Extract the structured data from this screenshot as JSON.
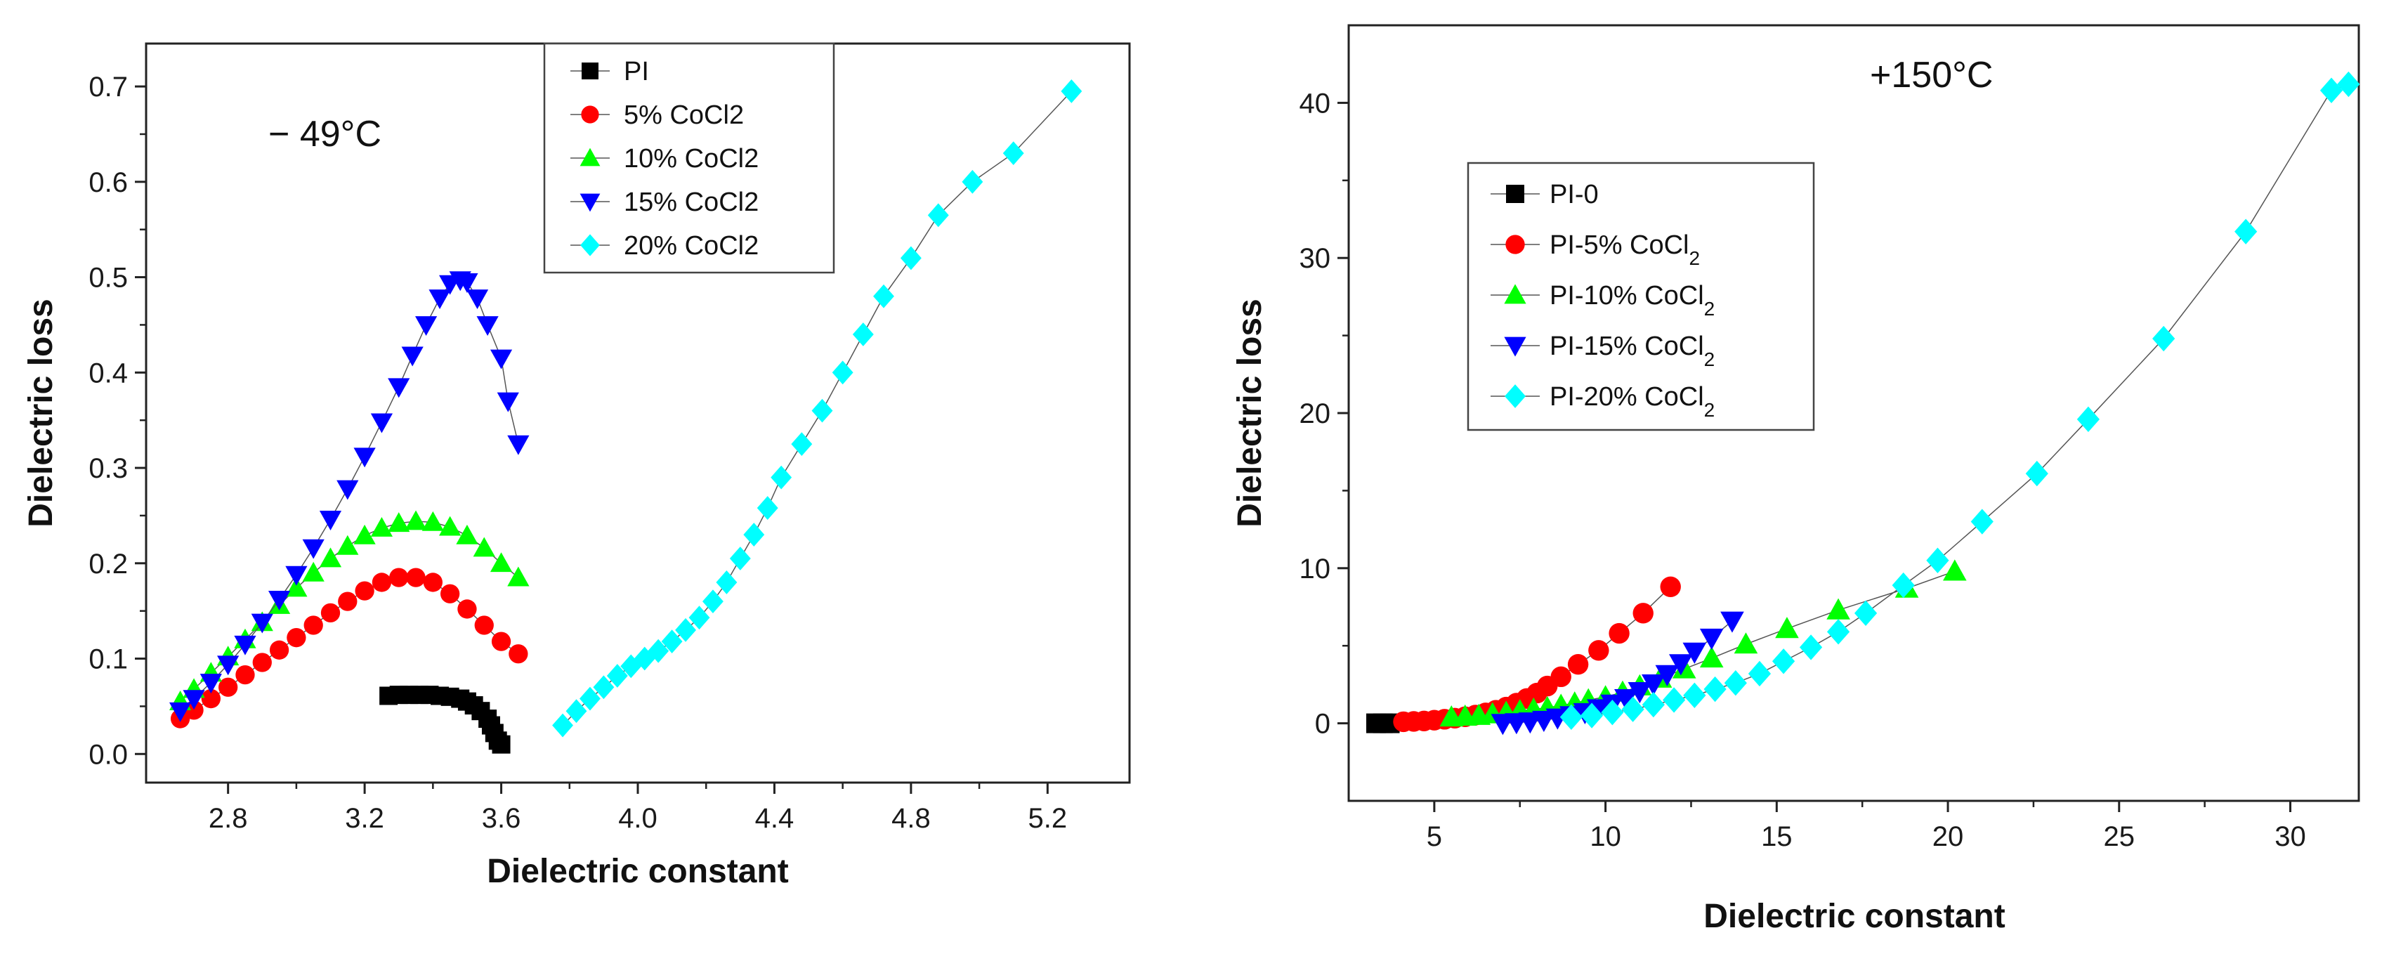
{
  "chart_data": [
    {
      "type": "scatter",
      "title": "",
      "temperature_label": "− 49°C",
      "xlabel": "Dielectric constant",
      "ylabel": "Dielectric loss",
      "xlim": [
        2.56,
        5.44
      ],
      "ylim": [
        -0.03,
        0.745
      ],
      "xticks": [
        "2.8",
        "3.2",
        "3.6",
        "4.0",
        "4.4",
        "4.8",
        "5.2"
      ],
      "yticks": [
        "0.0",
        "0.1",
        "0.2",
        "0.3",
        "0.4",
        "0.5",
        "0.6",
        "0.7"
      ],
      "legend_position": "top-center",
      "series": [
        {
          "name": "PI",
          "color": "#000000",
          "marker": "square",
          "x": [
            3.27,
            3.3,
            3.33,
            3.36,
            3.39,
            3.42,
            3.45,
            3.48,
            3.5,
            3.52,
            3.54,
            3.56,
            3.57,
            3.58,
            3.59,
            3.6
          ],
          "y": [
            0.061,
            0.062,
            0.062,
            0.062,
            0.062,
            0.061,
            0.06,
            0.058,
            0.055,
            0.051,
            0.045,
            0.037,
            0.03,
            0.022,
            0.014,
            0.01
          ]
        },
        {
          "name": "5% CoCl2",
          "color": "#ff0000",
          "marker": "circle",
          "x": [
            2.66,
            2.7,
            2.75,
            2.8,
            2.85,
            2.9,
            2.95,
            3.0,
            3.05,
            3.1,
            3.15,
            3.2,
            3.25,
            3.3,
            3.35,
            3.4,
            3.45,
            3.5,
            3.55,
            3.6,
            3.65
          ],
          "y": [
            0.037,
            0.046,
            0.058,
            0.07,
            0.083,
            0.096,
            0.109,
            0.122,
            0.135,
            0.148,
            0.16,
            0.171,
            0.18,
            0.185,
            0.185,
            0.18,
            0.168,
            0.152,
            0.135,
            0.118,
            0.105
          ]
        },
        {
          "name": "10% CoCl2",
          "color": "#00ff00",
          "marker": "triangle",
          "x": [
            2.66,
            2.7,
            2.75,
            2.8,
            2.85,
            2.9,
            2.95,
            3.0,
            3.05,
            3.1,
            3.15,
            3.2,
            3.25,
            3.3,
            3.35,
            3.4,
            3.45,
            3.5,
            3.55,
            3.6,
            3.65
          ],
          "y": [
            0.055,
            0.068,
            0.085,
            0.102,
            0.12,
            0.138,
            0.156,
            0.174,
            0.19,
            0.205,
            0.218,
            0.229,
            0.237,
            0.242,
            0.244,
            0.243,
            0.238,
            0.229,
            0.216,
            0.2,
            0.185
          ]
        },
        {
          "name": "15% CoCl2",
          "color": "#0000ff",
          "marker": "triangle-down",
          "x": [
            2.66,
            2.7,
            2.75,
            2.8,
            2.85,
            2.9,
            2.95,
            3.0,
            3.05,
            3.1,
            3.15,
            3.2,
            3.25,
            3.3,
            3.34,
            3.38,
            3.42,
            3.45,
            3.48,
            3.5,
            3.53,
            3.56,
            3.6,
            3.62,
            3.65
          ],
          "y": [
            0.045,
            0.058,
            0.075,
            0.094,
            0.115,
            0.138,
            0.162,
            0.188,
            0.216,
            0.246,
            0.278,
            0.312,
            0.348,
            0.385,
            0.418,
            0.45,
            0.478,
            0.493,
            0.497,
            0.495,
            0.478,
            0.45,
            0.415,
            0.37,
            0.325
          ]
        },
        {
          "name": "20% CoCl2",
          "color": "#00ffff",
          "marker": "diamond",
          "x": [
            3.78,
            3.82,
            3.86,
            3.9,
            3.94,
            3.98,
            4.02,
            4.06,
            4.1,
            4.14,
            4.18,
            4.22,
            4.26,
            4.3,
            4.34,
            4.38,
            4.42,
            4.48,
            4.54,
            4.6,
            4.66,
            4.72,
            4.8,
            4.88,
            4.98,
            5.1,
            5.27
          ],
          "y": [
            0.03,
            0.045,
            0.058,
            0.07,
            0.082,
            0.092,
            0.1,
            0.108,
            0.118,
            0.13,
            0.143,
            0.16,
            0.18,
            0.205,
            0.23,
            0.258,
            0.29,
            0.325,
            0.36,
            0.4,
            0.44,
            0.48,
            0.52,
            0.565,
            0.6,
            0.63,
            0.695
          ]
        }
      ]
    },
    {
      "type": "scatter",
      "title": "",
      "temperature_label": "+150°C",
      "xlabel": "Dielectric constant",
      "ylabel": "Dielectric loss",
      "xlim": [
        2.5,
        32.0
      ],
      "ylim": [
        -5,
        45
      ],
      "xticks": [
        "5",
        "10",
        "15",
        "20",
        "25",
        "30"
      ],
      "yticks": [
        "0",
        "10",
        "20",
        "30",
        "40"
      ],
      "legend_position": "top-left",
      "series": [
        {
          "name": "PI-0",
          "color": "#000000",
          "marker": "square",
          "x": [
            3.3,
            3.5,
            3.7
          ],
          "y": [
            0.0,
            0.0,
            0.0
          ]
        },
        {
          "name": "PI-5% CoCl2",
          "color": "#ff0000",
          "marker": "circle",
          "x": [
            4.1,
            4.4,
            4.7,
            5.0,
            5.3,
            5.6,
            5.9,
            6.2,
            6.5,
            6.8,
            7.1,
            7.4,
            7.7,
            8.0,
            8.3,
            8.7,
            9.2,
            9.8,
            10.4,
            11.1,
            11.9
          ],
          "y": [
            0.1,
            0.12,
            0.15,
            0.2,
            0.26,
            0.33,
            0.42,
            0.53,
            0.67,
            0.84,
            1.04,
            1.3,
            1.6,
            1.95,
            2.4,
            3.0,
            3.8,
            4.7,
            5.8,
            7.1,
            8.8
          ]
        },
        {
          "name": "PI-10% CoCl2",
          "color": "#00ff00",
          "marker": "triangle",
          "x": [
            5.5,
            5.9,
            6.3,
            6.7,
            7.1,
            7.5,
            7.9,
            8.3,
            8.7,
            9.1,
            9.5,
            10.0,
            10.5,
            11.0,
            11.6,
            12.3,
            13.1,
            14.1,
            15.3,
            16.8,
            18.8,
            20.2
          ],
          "y": [
            0.4,
            0.45,
            0.5,
            0.6,
            0.7,
            0.8,
            0.9,
            1.0,
            1.15,
            1.3,
            1.5,
            1.7,
            2.0,
            2.4,
            2.9,
            3.5,
            4.2,
            5.1,
            6.1,
            7.3,
            8.7,
            9.8
          ]
        },
        {
          "name": "PI-15% CoCl2",
          "color": "#0000ff",
          "marker": "triangle-down",
          "x": [
            7.0,
            7.4,
            7.8,
            8.2,
            8.6,
            9.0,
            9.4,
            9.8,
            10.2,
            10.6,
            11.0,
            11.4,
            11.8,
            12.2,
            12.6,
            13.1,
            13.7
          ],
          "y": [
            0.0,
            0.05,
            0.1,
            0.2,
            0.35,
            0.5,
            0.7,
            0.95,
            1.25,
            1.6,
            2.05,
            2.55,
            3.15,
            3.85,
            4.6,
            5.5,
            6.6
          ]
        },
        {
          "name": "PI-20% CoCl2",
          "color": "#00ffff",
          "marker": "diamond",
          "x": [
            9.0,
            9.6,
            10.2,
            10.8,
            11.4,
            12.0,
            12.6,
            13.2,
            13.8,
            14.5,
            15.2,
            16.0,
            16.8,
            17.6,
            18.7,
            19.7,
            21.0,
            22.6,
            24.1,
            26.3,
            28.7,
            31.2,
            31.7
          ],
          "y": [
            0.4,
            0.5,
            0.7,
            0.9,
            1.2,
            1.5,
            1.8,
            2.2,
            2.6,
            3.2,
            4.0,
            4.9,
            5.9,
            7.1,
            8.9,
            10.5,
            13.0,
            16.1,
            19.6,
            24.8,
            31.7,
            40.8,
            41.2
          ]
        }
      ]
    }
  ]
}
